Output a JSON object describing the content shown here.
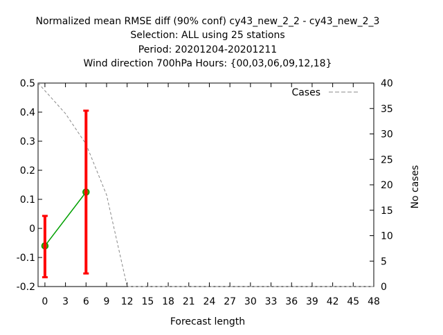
{
  "chart_data": {
    "type": "line",
    "title_lines": [
      "Normalized mean RMSE diff (90% conf) cy43_new_2_2 - cy43_new_2_3",
      "Selection: ALL using    25 stations",
      "Period: 20201204-20201211",
      "Wind direction 700hPa   Hours: {00,03,06,09,12,18}"
    ],
    "xlabel": "Forecast length",
    "ylabel_left": "",
    "ylabel_right": "No cases",
    "x_ticks": [
      0,
      3,
      6,
      9,
      12,
      15,
      18,
      21,
      24,
      27,
      30,
      33,
      36,
      39,
      42,
      45,
      48
    ],
    "xlim": [
      -1,
      48
    ],
    "y_ticks": [
      -0.2,
      -0.1,
      0,
      0.1,
      0.2,
      0.3,
      0.4,
      0.5
    ],
    "y_tick_labels": [
      "-0.2",
      "-0.1",
      "0",
      "0.1",
      "0.2",
      "0.3",
      "0.4",
      "0.5"
    ],
    "ylim": [
      -0.2,
      0.5
    ],
    "y2_ticks": [
      0,
      5,
      10,
      15,
      20,
      25,
      30,
      35,
      40
    ],
    "y2lim": [
      0,
      40
    ],
    "grid": false,
    "legend": {
      "position": "top-right",
      "entries": [
        "Cases"
      ]
    },
    "series": [
      {
        "kind": "diff",
        "color": "#00a000",
        "marker_color": "#808000",
        "x": [
          0,
          6
        ],
        "y": [
          -0.06,
          0.125
        ]
      }
    ],
    "error_bars": {
      "color": "#ff0000",
      "x": [
        0,
        6
      ],
      "low": [
        -0.168,
        -0.155
      ],
      "high": [
        0.043,
        0.405
      ]
    },
    "cases": {
      "name": "Cases",
      "color": "#888888",
      "x": [
        -1,
        0,
        3,
        6,
        9,
        12,
        15,
        18,
        21,
        24,
        27,
        30,
        33,
        36,
        39,
        42,
        45,
        48
      ],
      "y": [
        40,
        38.5,
        34,
        28,
        18,
        0,
        0,
        0,
        0,
        0,
        0,
        0,
        0,
        0,
        0,
        0,
        0,
        0
      ]
    }
  }
}
